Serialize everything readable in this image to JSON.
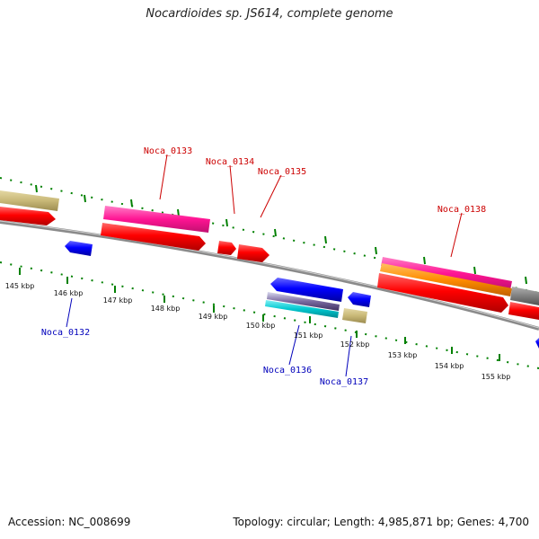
{
  "title": "Nocardioides sp. JS614, complete genome",
  "footer": {
    "accession": "Accession: NC_008699",
    "stats": "Topology: circular; Length: 4,985,871 bp; Genes: 4,700"
  },
  "colors": {
    "plus_label": "#cc0000",
    "minus_label": "#0000bb",
    "cds": "#ff0000",
    "cds_minus": "#0000ff",
    "rna_or_other": "#ff1493",
    "orange_feature": "#ff8c00",
    "tan_feature": "#c8b877",
    "gray_feature": "#808080",
    "cyan_feature": "#00c8d0",
    "tick": "#008000",
    "backbone": "#808080"
  },
  "scale": {
    "unit": "kbp",
    "labels": [
      "145 kbp",
      "146 kbp",
      "147 kbp",
      "148 kbp",
      "149 kbp",
      "150 kbp",
      "151 kbp",
      "152 kbp",
      "153 kbp",
      "154 kbp",
      "155 kbp"
    ]
  },
  "gene_labels": {
    "plus": [
      "Noca_0133",
      "Noca_0134",
      "Noca_0135",
      "Noca_0138"
    ],
    "minus": [
      "Noca_0132",
      "Noca_0136",
      "Noca_0137"
    ]
  }
}
